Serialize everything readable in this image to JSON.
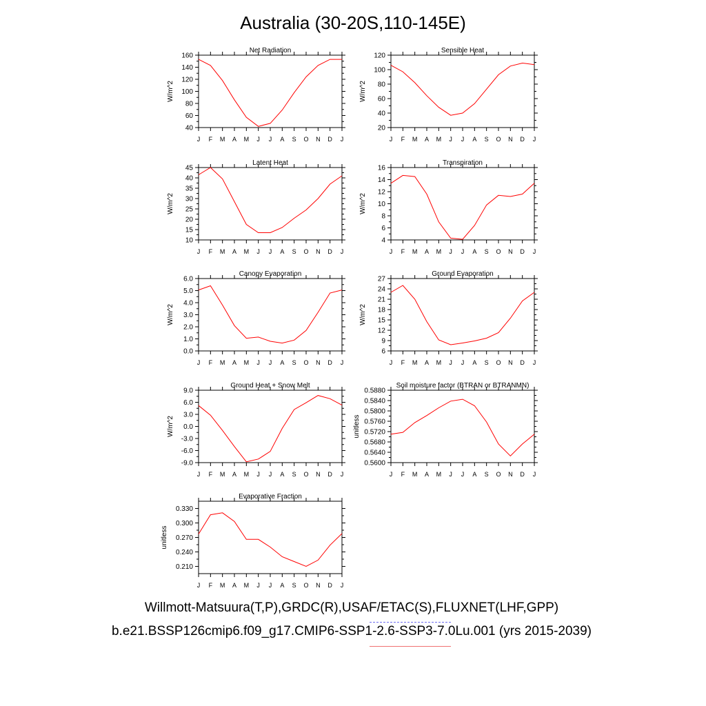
{
  "title": "Australia (30-20S,110-145E)",
  "legend": {
    "observations": "Willmott-Matsuura(T,P),GRDC(R),USAF/ETAC(S),FLUXNET(LHF,GPP)",
    "case": "b.e21.BSSP126cmip6.f09_g17.CMIP6-SSP1-2.6-SSP3-7.0Lu.001 (yrs 2015-2039)",
    "obs_color": "#6b6bf0",
    "case_color": "#ff0000"
  },
  "chart_data": [
    {
      "type": "line",
      "title": "Net Radiation",
      "ylabel": "W/m^2",
      "x": [
        "J",
        "F",
        "M",
        "A",
        "M",
        "J",
        "J",
        "A",
        "S",
        "O",
        "N",
        "D",
        "J"
      ],
      "ylim": [
        40,
        160
      ],
      "yticks": [
        "40",
        "60",
        "80",
        "100",
        "120",
        "140",
        "160"
      ],
      "series": [
        {
          "color": "#ff0000",
          "values": [
            153,
            143,
            118,
            86,
            57,
            42,
            47,
            69,
            98,
            124,
            143,
            153,
            153
          ]
        }
      ]
    },
    {
      "type": "line",
      "title": "Sensible Heat",
      "ylabel": "W/m^2",
      "x": [
        "J",
        "F",
        "M",
        "A",
        "M",
        "J",
        "J",
        "A",
        "S",
        "O",
        "N",
        "D",
        "J"
      ],
      "ylim": [
        20,
        120
      ],
      "yticks": [
        "20",
        "40",
        "60",
        "80",
        "100",
        "120"
      ],
      "series": [
        {
          "color": "#ff0000",
          "values": [
            106,
            97,
            82,
            64,
            48,
            37,
            40,
            53,
            73,
            93,
            105,
            109,
            107
          ]
        }
      ]
    },
    {
      "type": "line",
      "title": "Latent Heat",
      "ylabel": "W/m^2",
      "x": [
        "J",
        "F",
        "M",
        "A",
        "M",
        "J",
        "J",
        "A",
        "S",
        "O",
        "N",
        "D",
        "J"
      ],
      "ylim": [
        10,
        45
      ],
      "yticks": [
        "10",
        "15",
        "20",
        "25",
        "30",
        "35",
        "40",
        "45"
      ],
      "series": [
        {
          "color": "#ff0000",
          "values": [
            41.5,
            45,
            39.5,
            28.5,
            17.5,
            13.5,
            13.5,
            16,
            20.5,
            24.5,
            30,
            37,
            41
          ]
        }
      ]
    },
    {
      "type": "line",
      "title": "Transpiration",
      "ylabel": "W/m^2",
      "x": [
        "J",
        "F",
        "M",
        "A",
        "M",
        "J",
        "J",
        "A",
        "S",
        "O",
        "N",
        "D",
        "J"
      ],
      "ylim": [
        4,
        16
      ],
      "yticks": [
        "4",
        "6",
        "8",
        "10",
        "12",
        "14",
        "16"
      ],
      "series": [
        {
          "color": "#ff0000",
          "values": [
            13.4,
            14.7,
            14.5,
            11.6,
            7.0,
            4.3,
            4.1,
            6.4,
            9.8,
            11.4,
            11.2,
            11.6,
            13.4
          ]
        }
      ]
    },
    {
      "type": "line",
      "title": "Canopy Evaporation",
      "ylabel": "W/m^2",
      "x": [
        "J",
        "F",
        "M",
        "A",
        "M",
        "J",
        "J",
        "A",
        "S",
        "O",
        "N",
        "D",
        "J"
      ],
      "ylim": [
        0,
        6
      ],
      "yticks": [
        "0.0",
        "1.0",
        "2.0",
        "3.0",
        "4.0",
        "5.0",
        "6.0"
      ],
      "series": [
        {
          "color": "#ff0000",
          "values": [
            5.05,
            5.4,
            3.8,
            2.1,
            1.05,
            1.15,
            0.8,
            0.65,
            0.9,
            1.7,
            3.2,
            4.8,
            5.05
          ]
        }
      ]
    },
    {
      "type": "line",
      "title": "Ground Evaporation",
      "ylabel": "W/m^2",
      "x": [
        "J",
        "F",
        "M",
        "A",
        "M",
        "J",
        "J",
        "A",
        "S",
        "O",
        "N",
        "D",
        "J"
      ],
      "ylim": [
        6,
        27
      ],
      "yticks": [
        "6",
        "9",
        "12",
        "15",
        "18",
        "21",
        "24",
        "27"
      ],
      "series": [
        {
          "color": "#ff0000",
          "values": [
            23,
            25,
            21,
            14.5,
            9.2,
            7.8,
            8.3,
            8.9,
            9.7,
            11.3,
            15.5,
            20.5,
            23
          ]
        }
      ]
    },
    {
      "type": "line",
      "title": "Ground Heat + Snow Melt",
      "ylabel": "W/m^2",
      "x": [
        "J",
        "F",
        "M",
        "A",
        "M",
        "J",
        "J",
        "A",
        "S",
        "O",
        "N",
        "D",
        "J"
      ],
      "ylim": [
        -9,
        9
      ],
      "yticks": [
        "-9.0",
        "-6.0",
        "-3.0",
        "0.0",
        "3.0",
        "6.0",
        "9.0"
      ],
      "series": [
        {
          "color": "#ff0000",
          "values": [
            5.2,
            2.8,
            -1,
            -5,
            -8.8,
            -8.1,
            -6.2,
            -0.5,
            4.2,
            5.9,
            7.7,
            6.9,
            5.3
          ]
        }
      ]
    },
    {
      "type": "line",
      "title": "Soil moisture factor (BTRAN or BTRANMN)",
      "ylabel": "unitless",
      "x": [
        "J",
        "F",
        "M",
        "A",
        "M",
        "J",
        "J",
        "A",
        "S",
        "O",
        "N",
        "D",
        "J"
      ],
      "ylim": [
        0.56,
        0.588
      ],
      "yticks": [
        "0.5600",
        "0.5640",
        "0.5680",
        "0.5720",
        "0.5760",
        "0.5800",
        "0.5840",
        "0.5880"
      ],
      "series": [
        {
          "color": "#ff0000",
          "values": [
            0.571,
            0.5717,
            0.5755,
            0.5782,
            0.5812,
            0.5838,
            0.5845,
            0.582,
            0.5757,
            0.5672,
            0.5626,
            0.5672,
            0.571
          ]
        }
      ]
    },
    {
      "type": "line",
      "title": "Evaporative Fraction",
      "ylabel": "unitless",
      "x": [
        "J",
        "F",
        "M",
        "A",
        "M",
        "J",
        "J",
        "A",
        "S",
        "O",
        "N",
        "D",
        "J"
      ],
      "ylim": [
        0.195,
        0.345
      ],
      "yticks": [
        "0.210",
        "0.240",
        "0.270",
        "0.300",
        "0.330"
      ],
      "series": [
        {
          "color": "#ff0000",
          "values": [
            0.277,
            0.317,
            0.321,
            0.303,
            0.266,
            0.266,
            0.25,
            0.23,
            0.22,
            0.21,
            0.223,
            0.254,
            0.278
          ]
        }
      ]
    }
  ]
}
